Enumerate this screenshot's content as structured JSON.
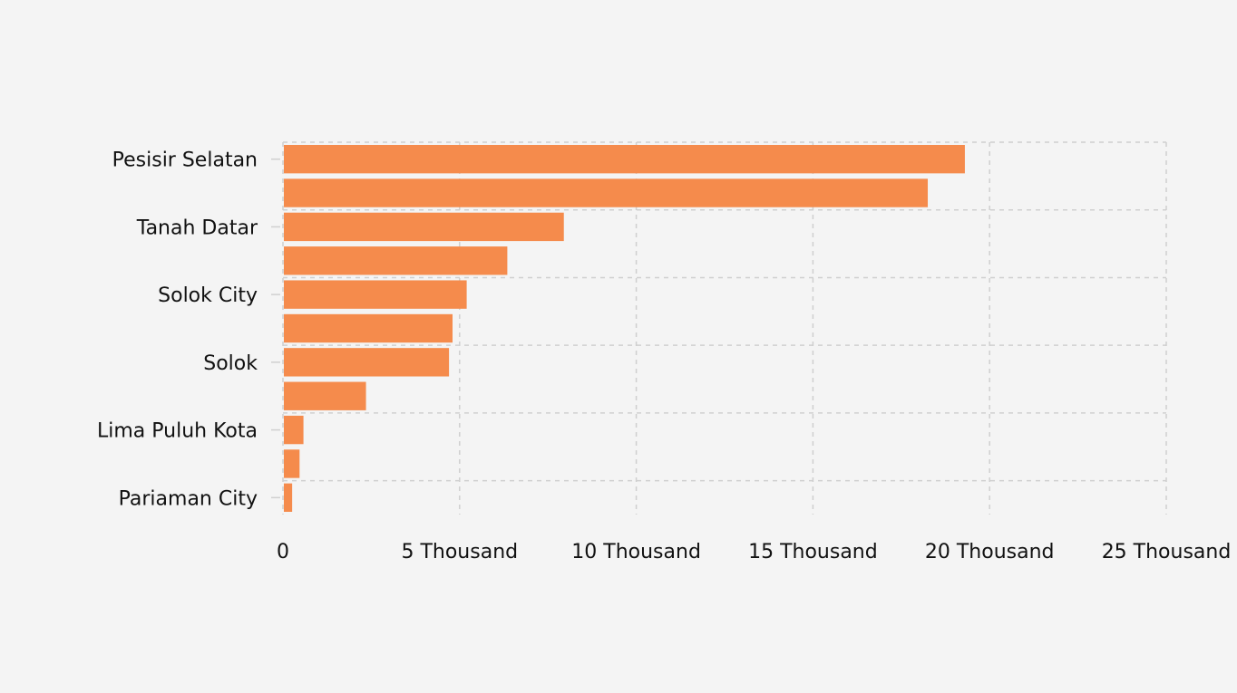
{
  "chart_data": {
    "type": "bar",
    "orientation": "horizontal",
    "categories": [
      "Pesisir Selatan",
      "",
      "Tanah Datar",
      "",
      "Solok City",
      "",
      "Solok",
      "",
      "Lima Puluh Kota",
      "",
      "Pariaman City"
    ],
    "values": [
      19300,
      18250,
      7950,
      6350,
      5200,
      4800,
      4700,
      2350,
      580,
      470,
      260
    ],
    "bar_color": "#f58b4c",
    "xlim": [
      0,
      25000
    ],
    "x_tick_values": [
      0,
      5000,
      10000,
      15000,
      20000,
      25000
    ],
    "x_tick_labels": [
      "0",
      "5 Thousand",
      "10 Thousand",
      "15 Thousand",
      "20 Thousand",
      "25 Thousand"
    ],
    "grid": true,
    "grid_style": "dashed",
    "legend": false,
    "title": "",
    "xlabel": "",
    "ylabel": ""
  }
}
